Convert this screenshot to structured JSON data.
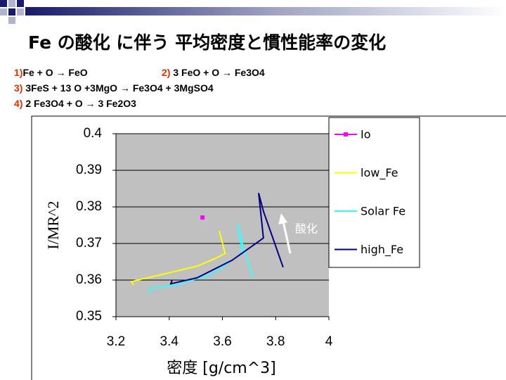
{
  "title": "Fe の酸化 に伴う 平均密度と慣性能率の変化",
  "reactions": [
    {
      "number": "1)",
      "text": "Fe + O → FeO"
    },
    {
      "number": "2)",
      "text": "3 FeO + O → Fe3O4"
    },
    {
      "number": "3)",
      "text": "3FeS + 13 O +3MgO → Fe3O4 + 3MgSO4"
    },
    {
      "number": "4)",
      "text": "2 Fe3O4 + O → 3 Fe2O3"
    }
  ],
  "chart_data": {
    "type": "line",
    "x_label": "密度 [g/cm^3]",
    "y_label": "I/MR^2",
    "annotation": "酸化",
    "xlim": [
      3.2,
      4
    ],
    "xticks": [
      3.2,
      3.4,
      3.6,
      3.8,
      4
    ],
    "ylim": [
      0.35,
      0.4
    ],
    "yticks": [
      0.35,
      0.36,
      0.37,
      0.38,
      0.39,
      0.4
    ],
    "grid": true,
    "legend": "right",
    "plot_background": "#c0c0c0",
    "series": [
      {
        "name": "Io",
        "color": "#ff00ff",
        "marker": true,
        "x": [
          3.525
        ],
        "values": [
          0.3771
        ]
      },
      {
        "name": "low_Fe",
        "color": "#ffff00",
        "x": [
          3.266,
          3.258,
          3.372,
          3.504,
          3.57,
          3.61,
          3.588
        ],
        "values": [
          0.3587,
          0.3596,
          0.3615,
          0.3638,
          0.3658,
          0.3673,
          0.3735
        ]
      },
      {
        "name": "Solar Fe",
        "color": "#33ffff",
        "x": [
          3.327,
          3.327,
          3.424,
          3.557,
          3.675,
          3.657,
          3.678,
          3.715
        ],
        "values": [
          0.3563,
          0.3577,
          0.3587,
          0.3615,
          0.3673,
          0.3754,
          0.3692,
          0.3606
        ]
      },
      {
        "name": "high_Fe",
        "color": "#000080",
        "x": [
          3.411,
          3.406,
          3.504,
          3.636,
          3.741,
          3.754,
          3.736,
          3.754,
          3.828
        ],
        "values": [
          0.36,
          0.359,
          0.3606,
          0.3654,
          0.3708,
          0.3715,
          0.3838,
          0.3788,
          0.3635
        ]
      }
    ]
  }
}
